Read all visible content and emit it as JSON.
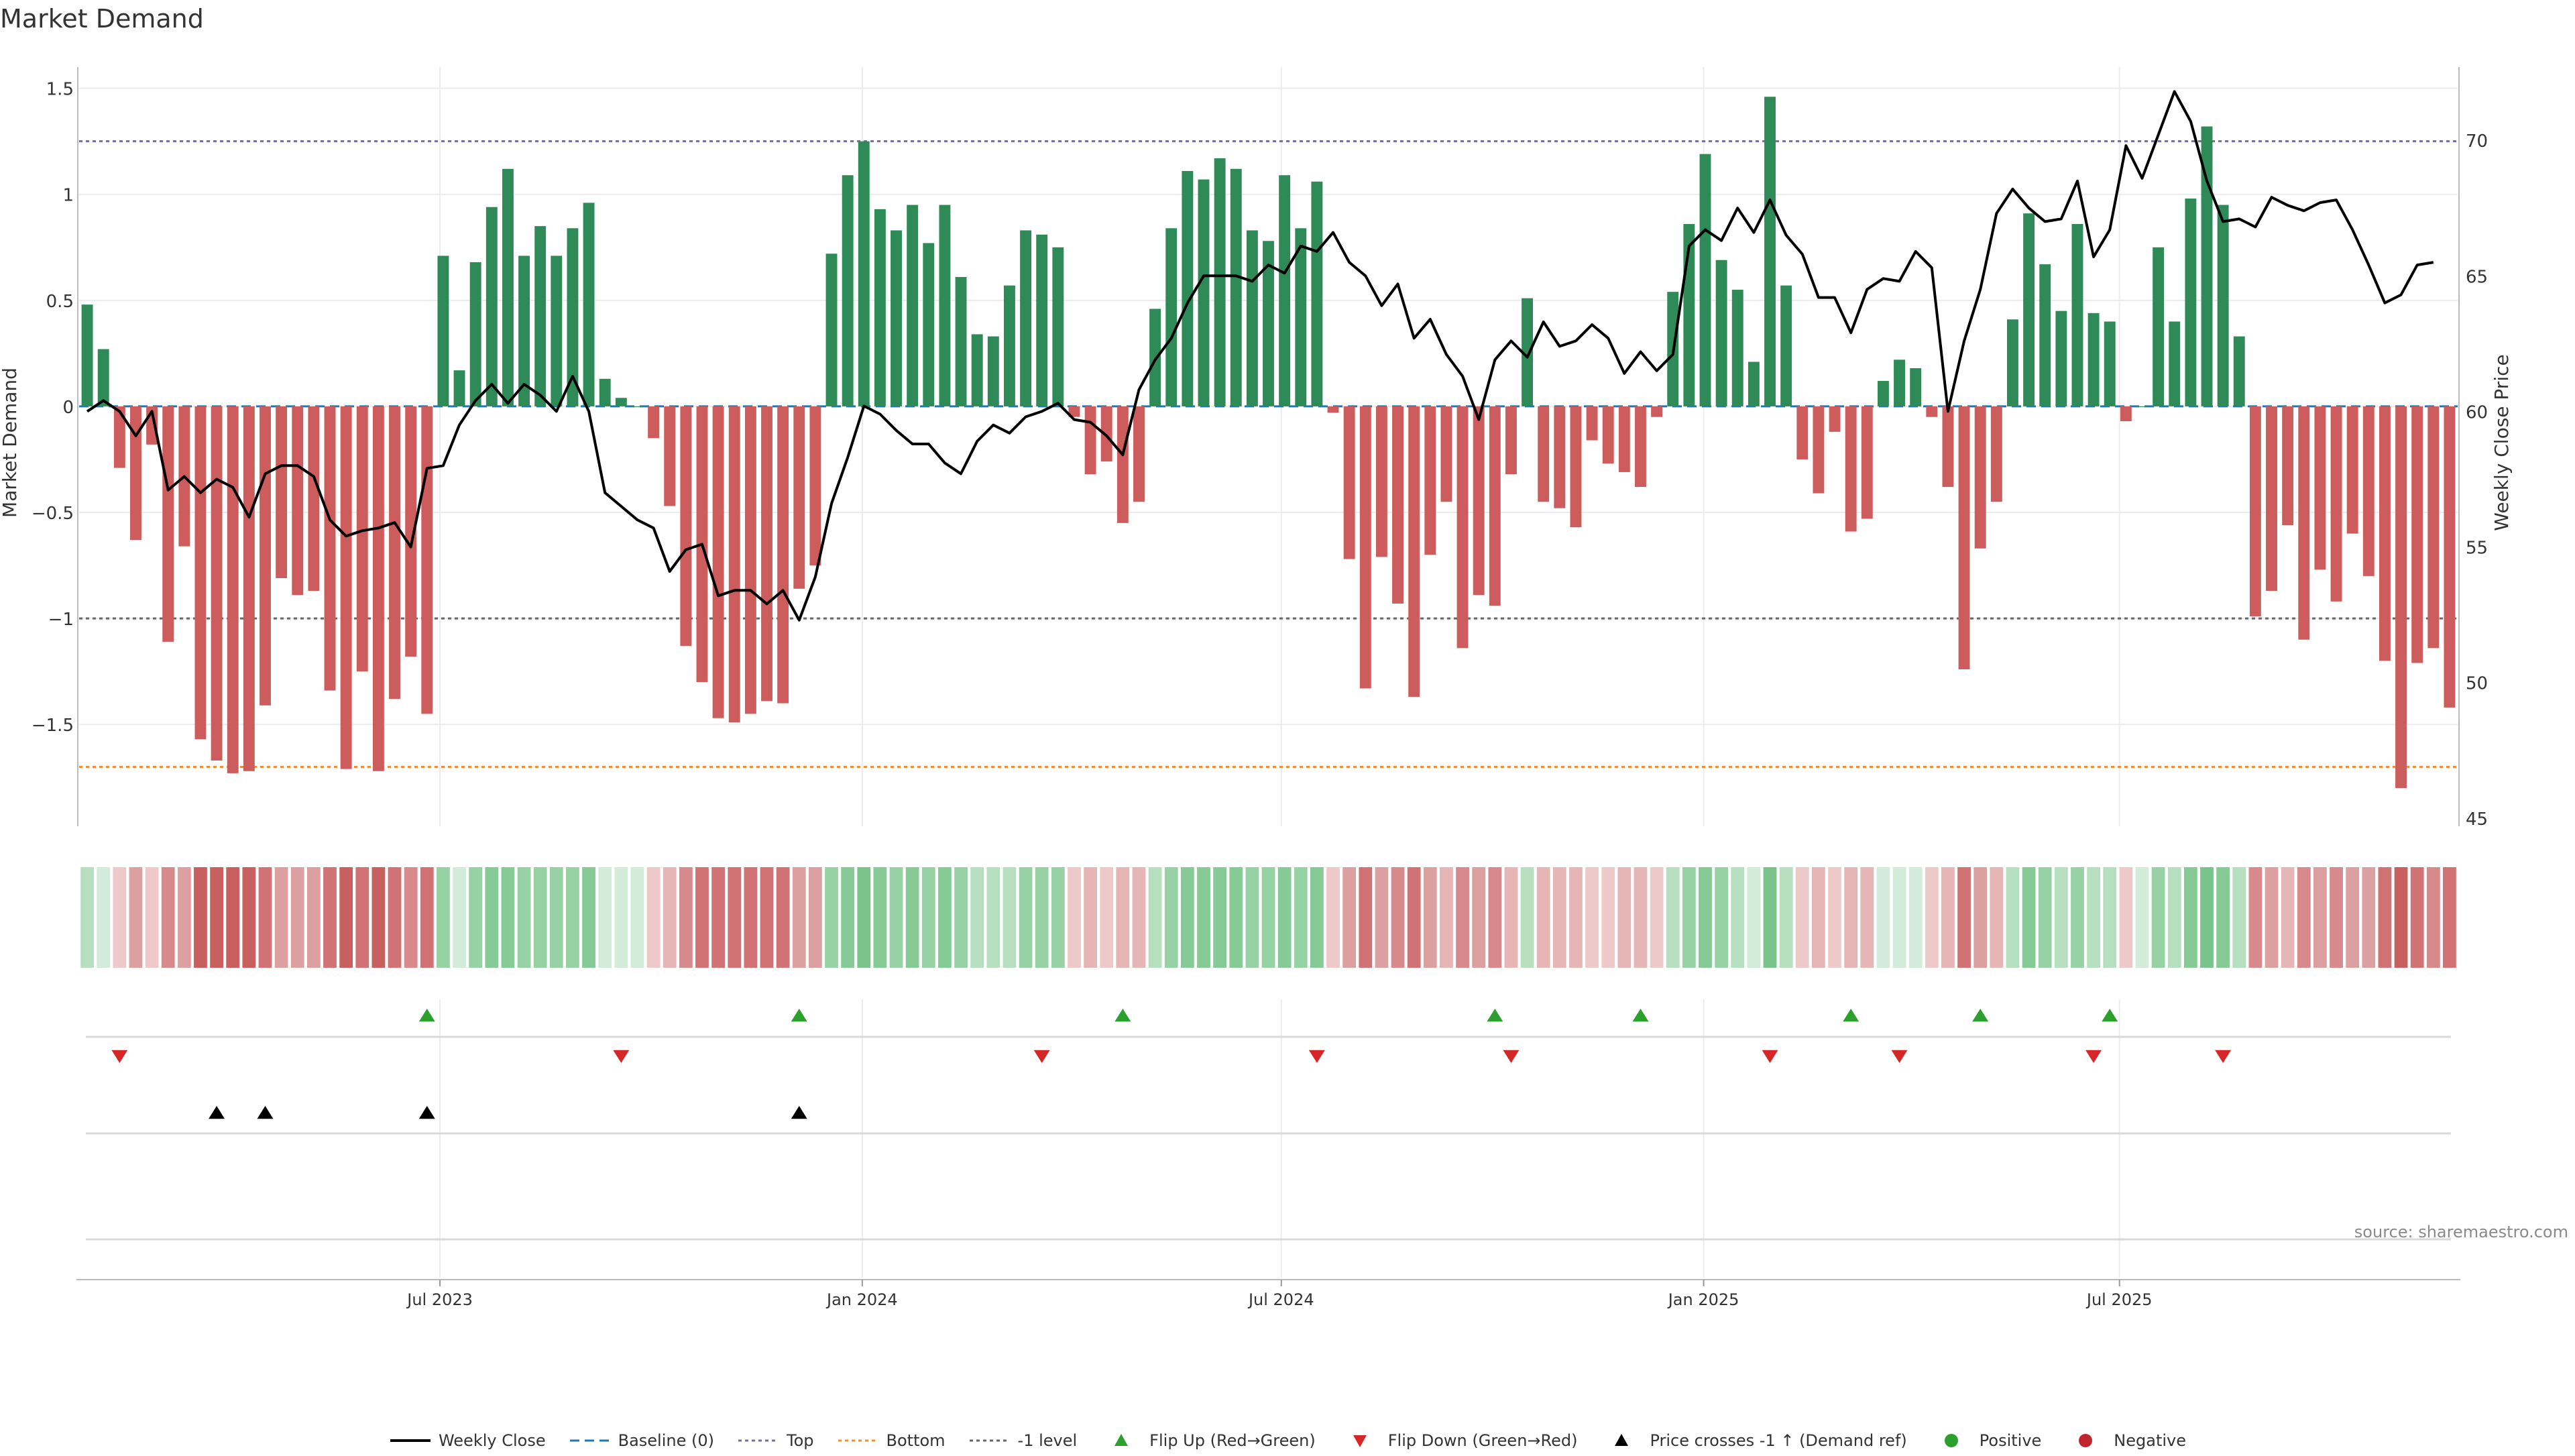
{
  "chart_data": {
    "type": "bar",
    "title": "Market Demand",
    "ylabel_left": "Market Demand",
    "ylabel_right": "Weekly Close Price",
    "source": "source: sharemaestro.com",
    "y_left_lim": [
      -1.98,
      1.6
    ],
    "y_left_ticks": [
      1.5,
      1,
      0.5,
      0,
      -0.5,
      -1,
      -1.5
    ],
    "y_left_tick_labels": [
      "1.5",
      "1",
      "0.5",
      "0",
      "−0.5",
      "−1",
      "−1.5"
    ],
    "y_right_lim": [
      44.7,
      72.7
    ],
    "y_right_ticks": [
      70,
      65,
      60,
      55,
      50,
      45
    ],
    "y_right_tick_labels": [
      "70",
      "65",
      "60",
      "55",
      "50",
      "45"
    ],
    "x_ticks": [
      {
        "week": 21.8,
        "label": "Jul 2023"
      },
      {
        "week": 47.9,
        "label": "Jan 2024"
      },
      {
        "week": 73.8,
        "label": "Jul 2024"
      },
      {
        "week": 99.9,
        "label": "Jan 2025"
      },
      {
        "week": 125.6,
        "label": "Jul 2025"
      }
    ],
    "reference_lines": {
      "top": 1.25,
      "bottom": -1.7,
      "minus_one": -1.0,
      "baseline": 0
    },
    "demand": [
      0.48,
      0.27,
      -0.29,
      -0.63,
      -0.18,
      -1.11,
      -0.66,
      -1.57,
      -1.67,
      -1.73,
      -1.72,
      -1.41,
      -0.81,
      -0.89,
      -0.87,
      -1.34,
      -1.71,
      -1.25,
      -1.72,
      -1.38,
      -1.18,
      -1.45,
      0.71,
      0.17,
      0.68,
      0.94,
      1.12,
      0.71,
      0.85,
      0.71,
      0.84,
      0.96,
      0.13,
      0.04,
      0.0,
      -0.15,
      -0.47,
      -1.13,
      -1.3,
      -1.47,
      -1.49,
      -1.45,
      -1.39,
      -1.4,
      -0.86,
      -0.75,
      0.72,
      1.09,
      1.25,
      0.93,
      0.83,
      0.95,
      0.77,
      0.95,
      0.61,
      0.34,
      0.33,
      0.57,
      0.83,
      0.81,
      0.75,
      -0.05,
      -0.32,
      -0.26,
      -0.55,
      -0.45,
      0.46,
      0.84,
      1.11,
      1.07,
      1.17,
      1.12,
      0.83,
      0.78,
      1.09,
      0.84,
      1.06,
      -0.03,
      -0.72,
      -1.33,
      -0.71,
      -0.93,
      -1.37,
      -0.7,
      -0.45,
      -1.14,
      -0.89,
      -0.94,
      -0.32,
      0.51,
      -0.45,
      -0.48,
      -0.57,
      -0.16,
      -0.27,
      -0.31,
      -0.38,
      -0.05,
      0.54,
      0.86,
      1.19,
      0.69,
      0.55,
      0.21,
      1.46,
      0.57,
      -0.25,
      -0.41,
      -0.12,
      -0.59,
      -0.53,
      0.12,
      0.22,
      0.18,
      -0.05,
      -0.38,
      -1.24,
      -0.67,
      -0.45,
      0.41,
      0.91,
      0.67,
      0.45,
      0.86,
      0.44,
      0.4,
      -0.07,
      0.0,
      0.75,
      0.4,
      0.98,
      1.32,
      0.95,
      0.33,
      -0.99,
      -0.87,
      -0.56,
      -1.1,
      -0.77,
      -0.92,
      -0.6,
      -0.8,
      -1.2,
      -1.8,
      -1.21,
      -1.14,
      -1.42
    ],
    "price": [
      60.0,
      60.4,
      60.0,
      59.1,
      60.0,
      57.1,
      57.6,
      57.0,
      57.5,
      57.2,
      56.1,
      57.7,
      58.0,
      58.0,
      57.6,
      56.0,
      55.4,
      55.6,
      55.7,
      55.9,
      55.0,
      57.9,
      58.0,
      59.5,
      60.4,
      61.0,
      60.3,
      61.0,
      60.6,
      60.0,
      61.3,
      60.0,
      57.0,
      56.5,
      56.0,
      55.7,
      54.1,
      54.9,
      55.1,
      53.2,
      53.4,
      53.4,
      52.9,
      53.4,
      52.3,
      53.9,
      56.6,
      58.3,
      60.2,
      59.9,
      59.3,
      58.8,
      58.8,
      58.1,
      57.7,
      58.9,
      59.5,
      59.2,
      59.8,
      60.0,
      60.3,
      59.7,
      59.6,
      59.1,
      58.4,
      60.8,
      61.9,
      62.7,
      64.0,
      65.0,
      65.0,
      65.0,
      64.8,
      65.4,
      65.1,
      66.1,
      65.9,
      66.6,
      65.5,
      65.0,
      63.9,
      64.7,
      62.7,
      63.4,
      62.1,
      61.3,
      59.7,
      61.9,
      62.6,
      62.0,
      63.3,
      62.4,
      62.6,
      63.2,
      62.7,
      61.4,
      62.2,
      61.5,
      62.1,
      66.1,
      66.7,
      66.3,
      67.5,
      66.6,
      67.8,
      66.5,
      65.8,
      64.2,
      64.2,
      62.9,
      64.5,
      64.9,
      64.8,
      65.9,
      65.3,
      60.0,
      62.6,
      64.5,
      67.3,
      68.2,
      67.5,
      67.0,
      67.1,
      68.5,
      65.7,
      66.7,
      69.8,
      68.6,
      70.2,
      71.8,
      70.7,
      68.5,
      67.0,
      67.1,
      66.8,
      67.9,
      67.6,
      67.4,
      67.7,
      67.8,
      66.7,
      65.4,
      64.0,
      64.3,
      65.4,
      65.5
    ],
    "flip_up_weeks": [
      21,
      44,
      64,
      87,
      96,
      109,
      117,
      125
    ],
    "flip_down_weeks": [
      2,
      33,
      59,
      76,
      88,
      104,
      112,
      124,
      132
    ],
    "price_cross_weeks": [
      8,
      11,
      21,
      44
    ],
    "intensity_colors": {
      "pos": [
        "#d3ebd9",
        "#b6dfbf",
        "#96d2a4",
        "#86cb96",
        "#7ac38b",
        "#56b270"
      ],
      "neg": [
        "#eec9c9",
        "#e6b5b6",
        "#dca0a1",
        "#d8898b",
        "#d17274",
        "#c8605f"
      ]
    },
    "colors": {
      "positive_bar": "#2e8b57",
      "negative_bar": "#cd5c5c",
      "price_line": "#000000",
      "baseline": "#1f77b4",
      "top_line": "#7a6aa8",
      "bottom_line": "#e8913d",
      "minus_one_line": "#666666",
      "flip_up": "#2ca02c",
      "flip_down": "#d62728",
      "price_cross": "#000000",
      "legend_positive": "#2ca02c",
      "legend_negative": "#c0272d"
    }
  },
  "legend": [
    {
      "key": "weekly_close",
      "label": "Weekly Close",
      "icon": "solid-line-icon"
    },
    {
      "key": "baseline",
      "label": "Baseline (0)",
      "icon": "dashed-line-icon"
    },
    {
      "key": "top",
      "label": "Top",
      "icon": "dotted-line-icon"
    },
    {
      "key": "bottom",
      "label": "Bottom",
      "icon": "dotted-line-icon"
    },
    {
      "key": "minus_one",
      "label": "-1 level",
      "icon": "dotted-line-icon"
    },
    {
      "key": "flip_up",
      "label": "Flip Up (Red→Green)",
      "icon": "triangle-up-icon"
    },
    {
      "key": "flip_down",
      "label": "Flip Down (Green→Red)",
      "icon": "triangle-down-icon"
    },
    {
      "key": "price_cross",
      "label": "Price crosses -1 ↑ (Demand ref)",
      "icon": "triangle-up-icon"
    },
    {
      "key": "positive",
      "label": "Positive",
      "icon": "circle-icon"
    },
    {
      "key": "negative",
      "label": "Negative",
      "icon": "circle-icon"
    }
  ]
}
